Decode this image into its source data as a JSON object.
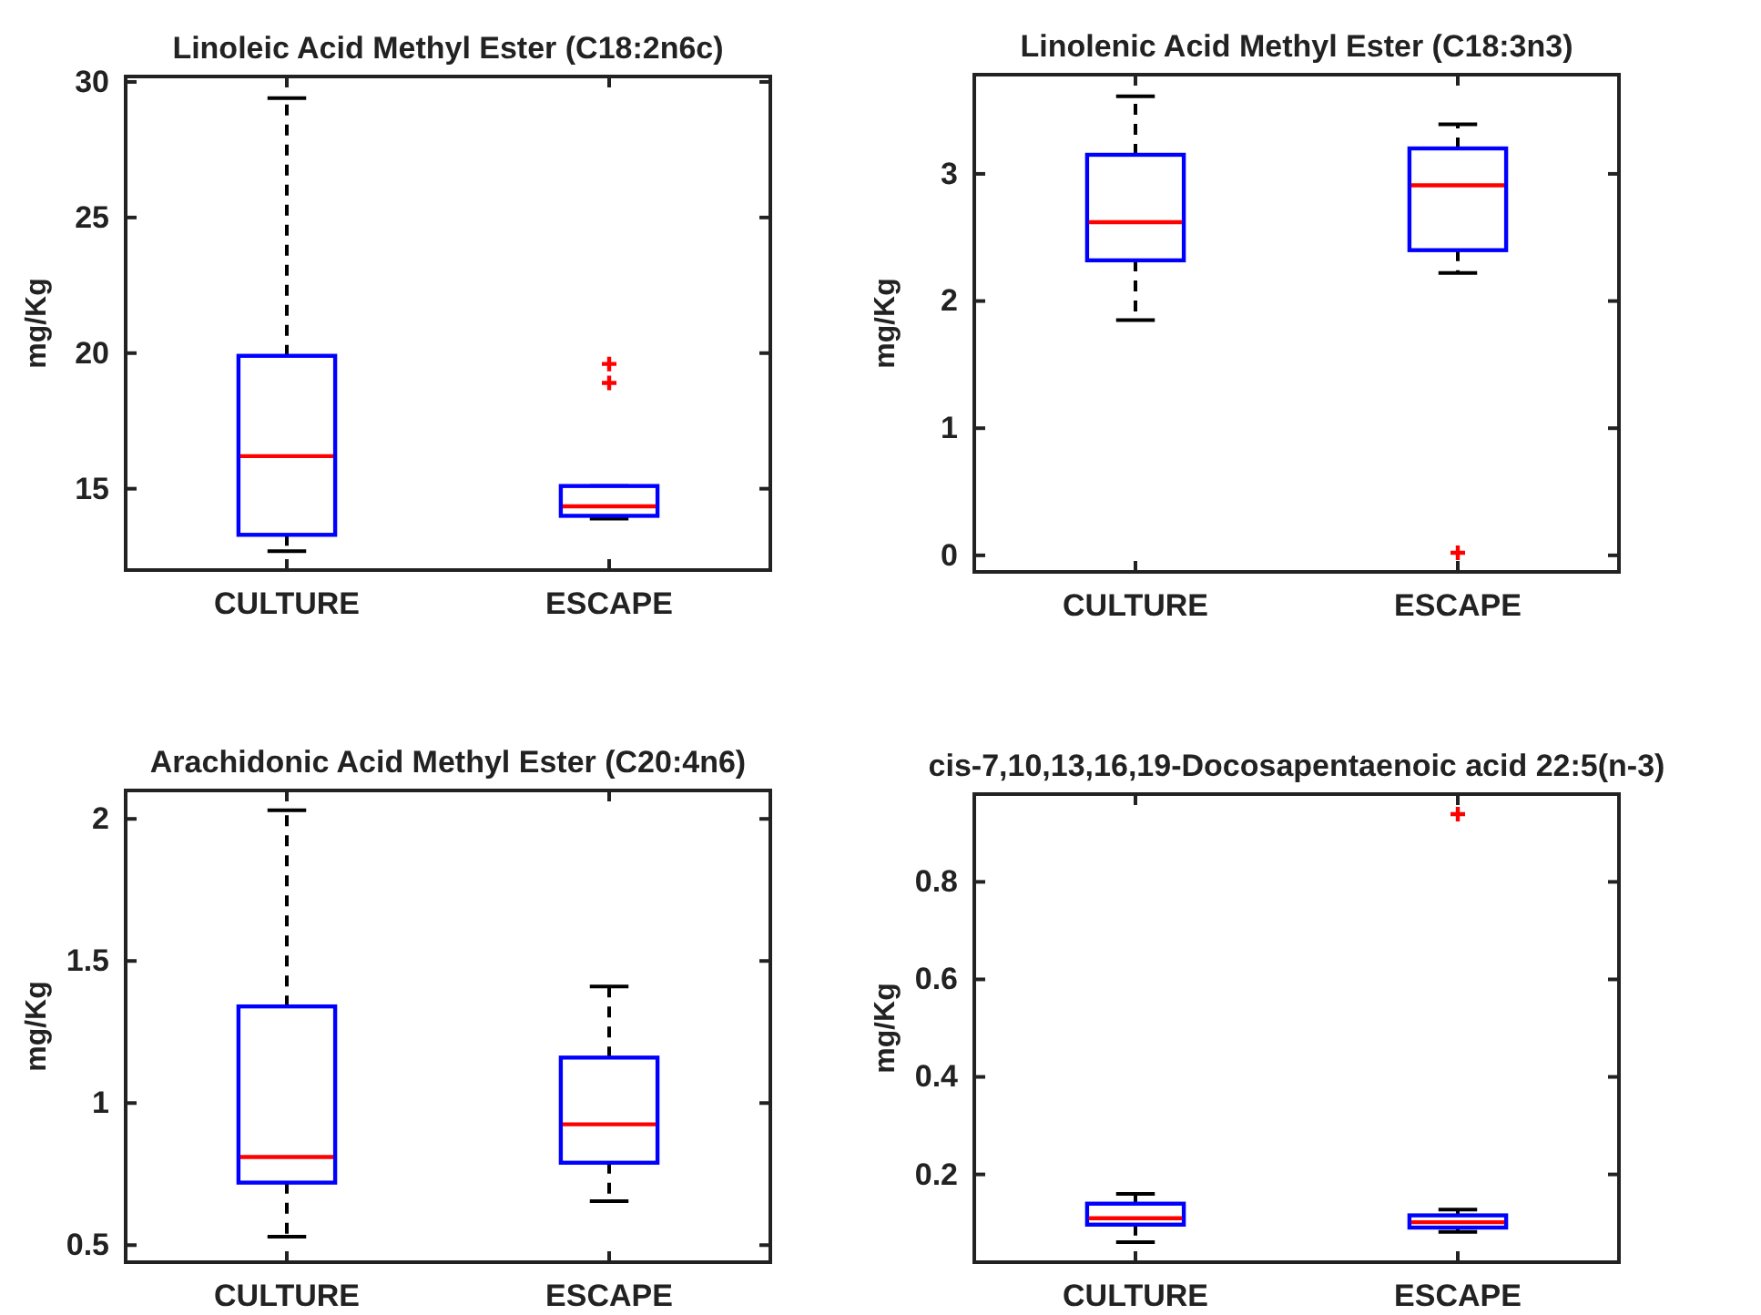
{
  "chart_data": [
    {
      "type": "box",
      "title": "Linoleic Acid Methyl Ester (C18:2n6c)",
      "ylabel": "mg/Kg",
      "categories": [
        "CULTURE",
        "ESCAPE"
      ],
      "ylim": [
        12,
        30.2
      ],
      "yticks": [
        15,
        20,
        25,
        30
      ],
      "boxes": [
        {
          "low": 12.7,
          "q1": 13.3,
          "median": 16.2,
          "q3": 19.9,
          "high": 29.4
        },
        {
          "low": 13.9,
          "q1": 14.0,
          "median": 14.35,
          "q3": 15.1,
          "high": 15.1,
          "outliers": [
            19.6,
            18.9
          ]
        }
      ]
    },
    {
      "type": "box",
      "title": "Linolenic Acid Methyl Ester (C18:3n3)",
      "ylabel": "mg/Kg",
      "categories": [
        "CULTURE",
        "ESCAPE"
      ],
      "ylim": [
        -0.13,
        3.78
      ],
      "yticks": [
        0,
        1,
        2,
        3
      ],
      "boxes": [
        {
          "low": 1.85,
          "q1": 2.32,
          "median": 2.62,
          "q3": 3.15,
          "high": 3.61
        },
        {
          "low": 2.22,
          "q1": 2.4,
          "median": 2.91,
          "q3": 3.2,
          "high": 3.39,
          "outliers": [
            0.02
          ]
        }
      ]
    },
    {
      "type": "box",
      "title": "Arachidonic Acid Methyl Ester (C20:4n6)",
      "ylabel": "mg/Kg",
      "categories": [
        "CULTURE",
        "ESCAPE"
      ],
      "ylim": [
        0.44,
        2.1
      ],
      "yticks": [
        0.5,
        1,
        1.5,
        2
      ],
      "boxes": [
        {
          "low": 0.53,
          "q1": 0.72,
          "median": 0.81,
          "q3": 1.34,
          "high": 2.03
        },
        {
          "low": 0.655,
          "q1": 0.79,
          "median": 0.925,
          "q3": 1.16,
          "high": 1.41
        }
      ]
    },
    {
      "type": "box",
      "title": "cis-7,10,13,16,19-Docosapentaenoic acid 22:5(n-3)",
      "ylabel": "mg/Kg",
      "categories": [
        "CULTURE",
        "ESCAPE"
      ],
      "ylim": [
        0.02,
        0.98
      ],
      "yticks": [
        0.2,
        0.4,
        0.6,
        0.8
      ],
      "boxes": [
        {
          "low": 0.061,
          "q1": 0.097,
          "median": 0.11,
          "q3": 0.14,
          "high": 0.16
        },
        {
          "low": 0.082,
          "q1": 0.091,
          "median": 0.102,
          "q3": 0.116,
          "high": 0.128,
          "outliers": [
            0.939
          ]
        }
      ]
    }
  ]
}
